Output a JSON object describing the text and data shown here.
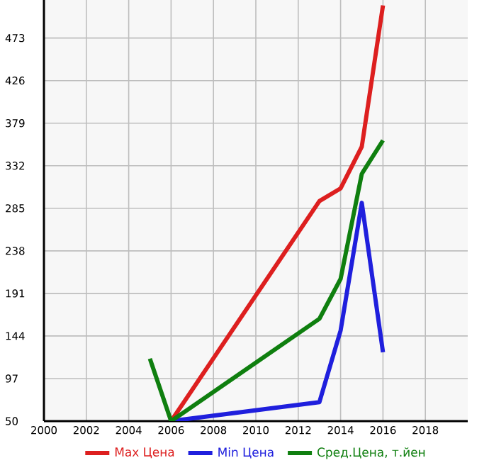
{
  "chart_data": {
    "type": "line",
    "xlim": [
      2000,
      2020
    ],
    "ylim": [
      50,
      515
    ],
    "xticks": [
      2000,
      2002,
      2004,
      2006,
      2008,
      2010,
      2012,
      2014,
      2016,
      2018
    ],
    "yticks": [
      50,
      97,
      144,
      191,
      238,
      285,
      332,
      379,
      426,
      473
    ],
    "grid": true,
    "legend": "bottom",
    "marker": "none",
    "line_style": "solid",
    "series": [
      {
        "name": "Max Цена",
        "color": "#dd1f1f",
        "x": [
          2006,
          2013,
          2014,
          2015,
          2016
        ],
        "values": [
          50,
          293,
          307,
          353,
          509
        ]
      },
      {
        "name": "Min Цена",
        "color": "#1f1fdd",
        "x": [
          2006,
          2013,
          2014,
          2015,
          2016
        ],
        "values": [
          50,
          71,
          150,
          291,
          126
        ]
      },
      {
        "name": "Сред.Цена, т.йен",
        "color": "#0f7f0f",
        "x": [
          2005,
          2006,
          2013,
          2014,
          2015,
          2016
        ],
        "values": [
          119,
          50,
          163,
          207,
          323,
          360
        ]
      }
    ]
  }
}
